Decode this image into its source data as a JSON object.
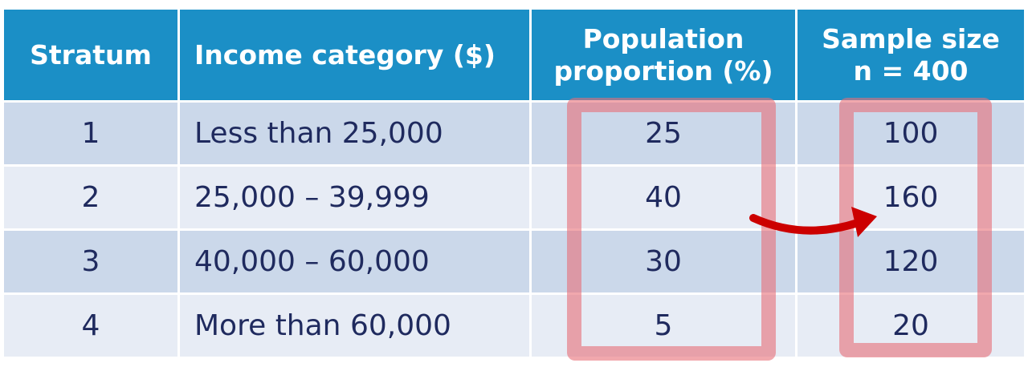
{
  "table": {
    "headers": [
      "Stratum",
      "Income category ($)",
      "Population proportion (%)",
      "Sample size n = 400"
    ],
    "header_lines": {
      "population": [
        "Population",
        "proportion (%)"
      ],
      "sample": [
        "Sample size",
        "n = 400"
      ]
    },
    "rows": [
      {
        "stratum": "1",
        "income": "Less than 25,000",
        "proportion": "25",
        "sample": "100"
      },
      {
        "stratum": "2",
        "income": "25,000 – 39,999",
        "proportion": "40",
        "sample": "160"
      },
      {
        "stratum": "3",
        "income": "40,000 – 60,000",
        "proportion": "30",
        "sample": "120"
      },
      {
        "stratum": "4",
        "income": "More than 60,000",
        "proportion": "5",
        "sample": "20"
      }
    ]
  },
  "colors": {
    "header": "#1b8fc6",
    "row_odd": "#cbd8ea",
    "row_even": "#e7ecf5",
    "highlight": "#e86e76",
    "arrow": "#cc0000"
  }
}
